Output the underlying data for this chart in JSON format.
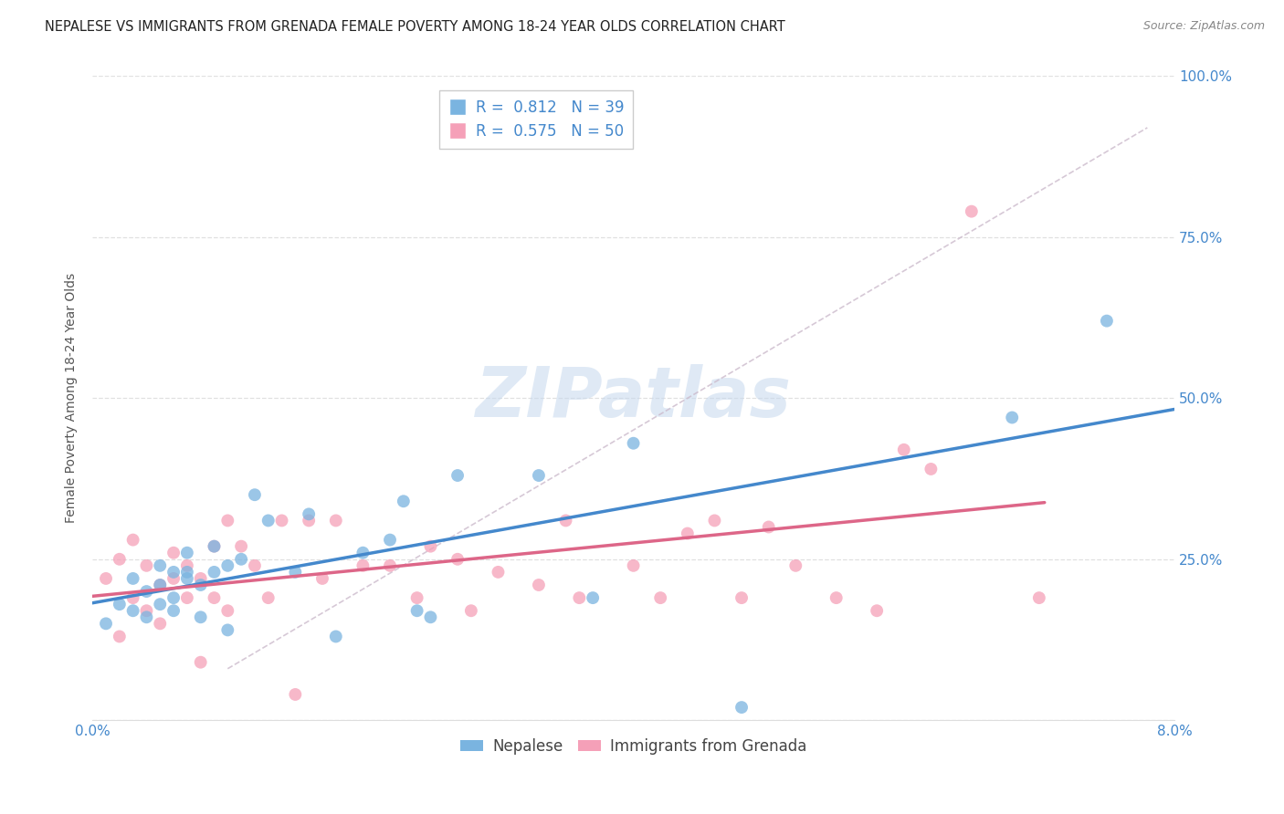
{
  "title": "NEPALESE VS IMMIGRANTS FROM GRENADA FEMALE POVERTY AMONG 18-24 YEAR OLDS CORRELATION CHART",
  "source": "Source: ZipAtlas.com",
  "ylabel": "Female Poverty Among 18-24 Year Olds",
  "watermark": "ZIPatlas",
  "xmin": 0.0,
  "xmax": 0.08,
  "ymin": 0.0,
  "ymax": 1.0,
  "xticks": [
    0.0,
    0.02,
    0.04,
    0.06,
    0.08
  ],
  "xticklabels": [
    "0.0%",
    "",
    "",
    "",
    "8.0%"
  ],
  "yticks": [
    0.0,
    0.25,
    0.5,
    0.75,
    1.0
  ],
  "yticklabels_right": [
    "",
    "25.0%",
    "50.0%",
    "75.0%",
    "100.0%"
  ],
  "legend_labels": [
    "Nepalese",
    "Immigrants from Grenada"
  ],
  "blue_color": "#7ab4e0",
  "pink_color": "#f5a0b8",
  "blue_line_color": "#4488cc",
  "pink_line_color": "#dd6688",
  "ref_line_color": "#ccaabb",
  "blue_R": 0.812,
  "blue_N": 39,
  "pink_R": 0.575,
  "pink_N": 50,
  "nepalese_x": [
    0.001,
    0.002,
    0.003,
    0.003,
    0.004,
    0.004,
    0.005,
    0.005,
    0.005,
    0.006,
    0.006,
    0.006,
    0.007,
    0.007,
    0.007,
    0.008,
    0.008,
    0.009,
    0.009,
    0.01,
    0.01,
    0.011,
    0.012,
    0.013,
    0.015,
    0.016,
    0.018,
    0.02,
    0.022,
    0.023,
    0.024,
    0.025,
    0.027,
    0.033,
    0.037,
    0.04,
    0.048,
    0.068,
    0.075
  ],
  "nepalese_y": [
    0.15,
    0.18,
    0.17,
    0.22,
    0.16,
    0.2,
    0.18,
    0.21,
    0.24,
    0.17,
    0.19,
    0.23,
    0.22,
    0.23,
    0.26,
    0.21,
    0.16,
    0.23,
    0.27,
    0.24,
    0.14,
    0.25,
    0.35,
    0.31,
    0.23,
    0.32,
    0.13,
    0.26,
    0.28,
    0.34,
    0.17,
    0.16,
    0.38,
    0.38,
    0.19,
    0.43,
    0.02,
    0.47,
    0.62
  ],
  "grenada_x": [
    0.001,
    0.002,
    0.002,
    0.003,
    0.003,
    0.004,
    0.004,
    0.005,
    0.005,
    0.006,
    0.006,
    0.007,
    0.007,
    0.008,
    0.008,
    0.009,
    0.009,
    0.01,
    0.01,
    0.011,
    0.012,
    0.013,
    0.014,
    0.015,
    0.016,
    0.017,
    0.018,
    0.02,
    0.022,
    0.024,
    0.025,
    0.027,
    0.028,
    0.03,
    0.033,
    0.035,
    0.036,
    0.04,
    0.042,
    0.044,
    0.046,
    0.048,
    0.05,
    0.052,
    0.055,
    0.058,
    0.06,
    0.062,
    0.065,
    0.07
  ],
  "grenada_y": [
    0.22,
    0.13,
    0.25,
    0.19,
    0.28,
    0.17,
    0.24,
    0.21,
    0.15,
    0.22,
    0.26,
    0.19,
    0.24,
    0.22,
    0.09,
    0.27,
    0.19,
    0.17,
    0.31,
    0.27,
    0.24,
    0.19,
    0.31,
    0.04,
    0.31,
    0.22,
    0.31,
    0.24,
    0.24,
    0.19,
    0.27,
    0.25,
    0.17,
    0.23,
    0.21,
    0.31,
    0.19,
    0.24,
    0.19,
    0.29,
    0.31,
    0.19,
    0.3,
    0.24,
    0.19,
    0.17,
    0.42,
    0.39,
    0.79,
    0.19
  ],
  "grid_color": "#dddddd",
  "spine_color": "#dddddd",
  "tick_color": "#4488cc",
  "title_fontsize": 10.5,
  "source_fontsize": 9,
  "tick_fontsize": 11,
  "ylabel_fontsize": 10,
  "legend_fontsize": 12,
  "watermark_fontsize": 55
}
